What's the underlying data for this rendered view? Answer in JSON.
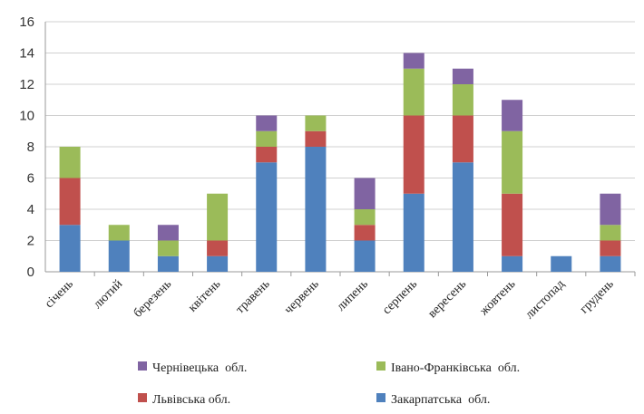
{
  "chart_data": {
    "type": "bar",
    "stacked": true,
    "categories": [
      "січень",
      "лютий",
      "березень",
      "квітень",
      "травень",
      "червень",
      "липень",
      "серпень",
      "вересень",
      "жовтень",
      "листопад",
      "грудень"
    ],
    "series": [
      {
        "name": "Закарпатська  обл.",
        "color": "#4f81bd",
        "values": [
          3,
          2,
          1,
          1,
          7,
          8,
          2,
          5,
          7,
          1,
          1,
          1
        ]
      },
      {
        "name": "Львівська обл.",
        "color": "#c0504d",
        "values": [
          3,
          0,
          0,
          1,
          1,
          1,
          1,
          5,
          3,
          4,
          0,
          1
        ]
      },
      {
        "name": "Івано-Франківська  обл.",
        "color": "#9bbb59",
        "values": [
          2,
          1,
          1,
          3,
          1,
          1,
          1,
          3,
          2,
          4,
          0,
          1
        ]
      },
      {
        "name": "Чернівецька  обл.",
        "color": "#8064a2",
        "values": [
          0,
          0,
          1,
          0,
          1,
          0,
          2,
          1,
          1,
          2,
          0,
          2
        ]
      }
    ],
    "ylim": [
      0,
      16
    ],
    "yticks": [
      "0",
      "2",
      "4",
      "6",
      "8",
      "10",
      "12",
      "14",
      "16"
    ],
    "grid": true,
    "legend_placement": "bottom",
    "legend_order": [
      3,
      2,
      1,
      0
    ]
  }
}
